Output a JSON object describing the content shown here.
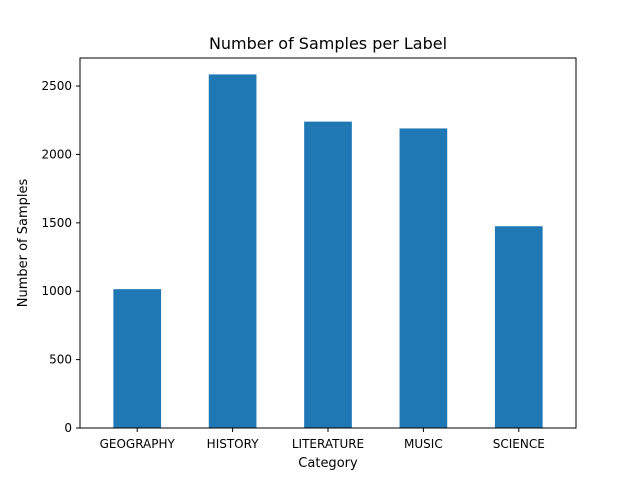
{
  "chart_data": {
    "type": "bar",
    "title": "Number of Samples per Label",
    "xlabel": "Category",
    "ylabel": "Number of Samples",
    "categories": [
      "GEOGRAPHY",
      "HISTORY",
      "LITERATURE",
      "MUSIC",
      "SCIENCE"
    ],
    "values": [
      1015,
      2585,
      2240,
      2190,
      1475
    ],
    "ylim": [
      0,
      2705
    ],
    "yticks": [
      0,
      500,
      1000,
      1500,
      2000,
      2500
    ],
    "grid": false,
    "legend": "none",
    "bar_color": "#1f77b4"
  }
}
